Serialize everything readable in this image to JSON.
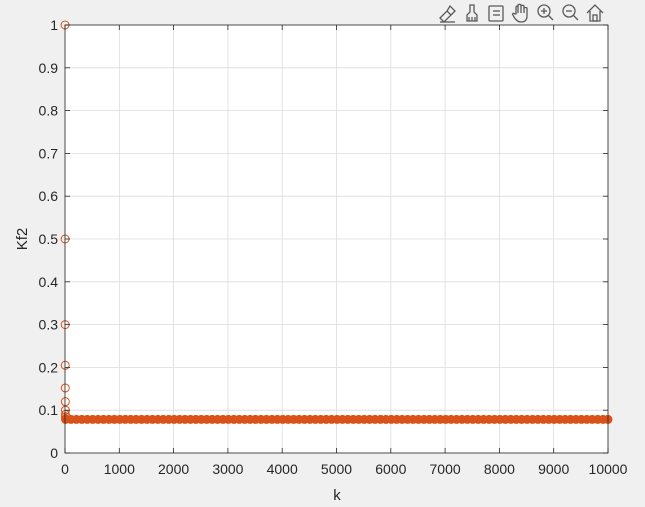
{
  "toolbar": {
    "icons": [
      "data-tips-icon",
      "brush-icon",
      "data-cursor-icon",
      "pan-hand-icon",
      "zoom-in-icon",
      "zoom-out-icon",
      "home-icon"
    ]
  },
  "colors": {
    "figure_bg": "#f0f0f0",
    "axes_bg": "#ffffff",
    "grid": "#dcdcdc",
    "axis": "#262626",
    "series": "#d95319"
  },
  "chart_data": {
    "type": "scatter",
    "xlabel": "k",
    "ylabel": "Kf2",
    "xlim": [
      0,
      10000
    ],
    "ylim": [
      0,
      1
    ],
    "xticks": [
      0,
      1000,
      2000,
      3000,
      4000,
      5000,
      6000,
      7000,
      8000,
      9000,
      10000
    ],
    "yticks": [
      0,
      0.1,
      0.2,
      0.3,
      0.4,
      0.5,
      0.6,
      0.7,
      0.8,
      0.9,
      1
    ],
    "grid": true,
    "marker": "circle",
    "series": [
      {
        "early_points": [
          {
            "x": 1,
            "y": 1.0
          },
          {
            "x": 2,
            "y": 0.5
          },
          {
            "x": 3,
            "y": 0.3
          },
          {
            "x": 4,
            "y": 0.205
          },
          {
            "x": 5,
            "y": 0.152
          },
          {
            "x": 6,
            "y": 0.12
          },
          {
            "x": 7,
            "y": 0.1
          },
          {
            "x": 8,
            "y": 0.09
          },
          {
            "x": 9,
            "y": 0.085
          },
          {
            "x": 10,
            "y": 0.08
          }
        ],
        "steady_value": 0.0785,
        "steady_range": [
          10,
          10000
        ],
        "steady_step": 100
      }
    ]
  }
}
